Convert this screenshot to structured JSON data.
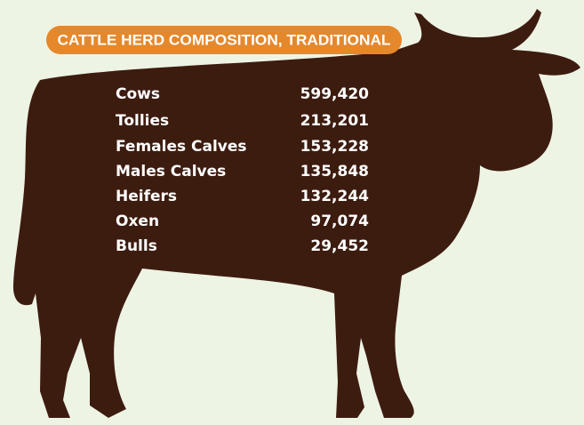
{
  "title": "CATTLE HERD COMPOSITION, TRADITIONAL",
  "table": {
    "rows": [
      [
        "Cows",
        "599,420"
      ],
      [
        "Tollies",
        "213,201"
      ],
      [
        "Females Calves",
        "153,228"
      ],
      [
        "Males Calves",
        "135,848"
      ],
      [
        "Heifers",
        "132,244"
      ],
      [
        "Oxen",
        "97,074"
      ],
      [
        "Bulls",
        "29,452"
      ]
    ]
  }
}
